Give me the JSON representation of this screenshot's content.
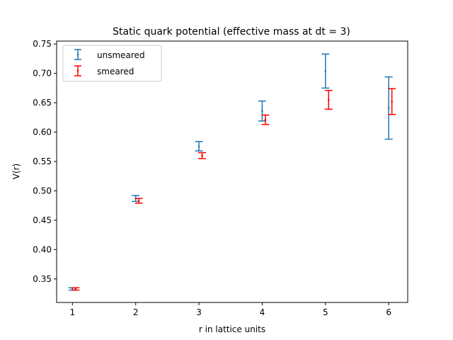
{
  "chart_data": {
    "type": "scatter",
    "title": "Static quark potential (effective mass at dt = 3)",
    "xlabel": "r in lattice units",
    "ylabel": "V(r)",
    "xlim": [
      0.75,
      6.3
    ],
    "ylim": [
      0.31,
      0.755
    ],
    "xticks": [
      1,
      2,
      3,
      4,
      5,
      6
    ],
    "yticks": [
      0.35,
      0.4,
      0.45,
      0.5,
      0.55,
      0.6,
      0.65,
      0.7,
      0.75
    ],
    "ytick_labels": [
      "0.35",
      "0.40",
      "0.45",
      "0.50",
      "0.55",
      "0.60",
      "0.65",
      "0.70",
      "0.75"
    ],
    "legend_position": "upper-left",
    "series": [
      {
        "name": "unsmeared",
        "color": "#1f77b4",
        "points": [
          {
            "x": 1.0,
            "y": 0.333,
            "err": 0.002
          },
          {
            "x": 2.0,
            "y": 0.487,
            "err": 0.005
          },
          {
            "x": 3.0,
            "y": 0.576,
            "err": 0.008
          },
          {
            "x": 4.0,
            "y": 0.636,
            "err": 0.017
          },
          {
            "x": 5.0,
            "y": 0.704,
            "err": 0.029
          },
          {
            "x": 6.0,
            "y": 0.641,
            "err": 0.053
          }
        ]
      },
      {
        "name": "smeared",
        "color": "#ff0000",
        "points": [
          {
            "x": 1.05,
            "y": 0.333,
            "err": 0.002
          },
          {
            "x": 2.05,
            "y": 0.483,
            "err": 0.004
          },
          {
            "x": 3.05,
            "y": 0.56,
            "err": 0.005
          },
          {
            "x": 4.05,
            "y": 0.621,
            "err": 0.008
          },
          {
            "x": 5.05,
            "y": 0.655,
            "err": 0.016
          },
          {
            "x": 6.05,
            "y": 0.652,
            "err": 0.022
          }
        ]
      }
    ]
  }
}
